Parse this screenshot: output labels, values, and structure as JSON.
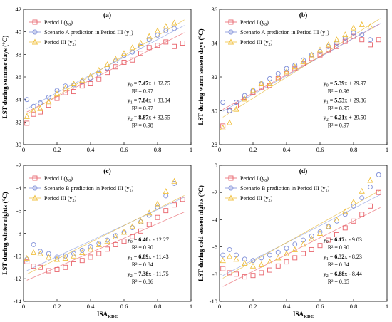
{
  "figure": {
    "x_axis_label_main": "ISA",
    "x_axis_label_sub": "KDE"
  },
  "chart_data": [
    {
      "type": "scatter",
      "panel_label": "(a)",
      "ylabel": "LST during summer days (°C)",
      "xlabel": "ISA_KDE",
      "xlim": [
        0,
        1
      ],
      "ylim": [
        30,
        42
      ],
      "xticks": [
        "0",
        "0.2",
        "0.4",
        "0.6",
        "0.8",
        "1"
      ],
      "yticks": [
        "30",
        "32",
        "34",
        "36",
        "38",
        "40",
        "42"
      ],
      "legend_position": "top-left",
      "series": [
        {
          "name": "Period I (y0)",
          "label_main": "Period I (y",
          "label_sub": "0",
          "label_end": ")",
          "marker": "square",
          "color": "#e8636b",
          "x": [
            0.02,
            0.06,
            0.1,
            0.15,
            0.2,
            0.25,
            0.3,
            0.35,
            0.4,
            0.45,
            0.5,
            0.55,
            0.6,
            0.65,
            0.7,
            0.75,
            0.8,
            0.85,
            0.9,
            0.95
          ],
          "y": [
            31.9,
            32.7,
            32.9,
            33.5,
            34.1,
            34.6,
            34.7,
            35.2,
            35.4,
            35.8,
            36.4,
            36.9,
            37.3,
            37.5,
            38.1,
            38.6,
            38.8,
            39.1,
            38.7,
            39.0
          ]
        },
        {
          "name": "Scenario A prediction in Period III (y1)",
          "label_main": "Scenario A prediction in Period III (y",
          "label_sub": "1",
          "label_end": ")",
          "marker": "circle",
          "color": "#7f8fd8",
          "x": [
            0.02,
            0.06,
            0.1,
            0.15,
            0.2,
            0.25,
            0.3,
            0.35,
            0.4,
            0.45,
            0.5,
            0.55,
            0.6,
            0.65,
            0.7,
            0.75,
            0.8,
            0.85,
            0.9
          ],
          "y": [
            34.0,
            33.4,
            33.7,
            34.2,
            34.8,
            35.2,
            35.3,
            35.6,
            35.9,
            36.3,
            36.8,
            37.4,
            37.9,
            38.2,
            38.7,
            39.3,
            39.7,
            40.1,
            40.3
          ]
        },
        {
          "name": "Period III (y2)",
          "label_main": "Period III (y",
          "label_sub": "2",
          "label_end": ")",
          "marker": "triangle",
          "color": "#f0c040",
          "x": [
            0.02,
            0.06,
            0.1,
            0.15,
            0.2,
            0.25,
            0.3,
            0.35,
            0.4,
            0.45,
            0.5,
            0.55,
            0.6,
            0.65,
            0.7,
            0.75,
            0.8,
            0.85,
            0.9
          ],
          "y": [
            32.5,
            33.0,
            33.2,
            33.8,
            34.5,
            35.0,
            35.4,
            35.7,
            36.1,
            36.6,
            37.1,
            37.6,
            38.1,
            38.6,
            39.0,
            39.6,
            40.1,
            40.5,
            40.8
          ]
        }
      ],
      "fits": [
        {
          "slope": 7.47,
          "intercept": 32.75,
          "r2": "0.97",
          "lhs": "y",
          "lhs_sub": "0",
          "text_slope": "7.47",
          "text_rest": "x + 32.75",
          "r2_text": "R² = 0.97",
          "color": "#e8636b"
        },
        {
          "slope": 7.84,
          "intercept": 33.04,
          "r2": "0.97",
          "lhs": "y",
          "lhs_sub": "1",
          "text_slope": "7.84",
          "text_rest": "x + 33.04",
          "r2_text": "R² = 0.97",
          "color": "#8d9fe0"
        },
        {
          "slope": 8.87,
          "intercept": 32.55,
          "r2": "0.98",
          "lhs": "y",
          "lhs_sub": "2",
          "text_slope": "8.87",
          "text_rest": "x + 32.55",
          "r2_text": "R² = 0.98",
          "color": "#e6b93a"
        }
      ]
    },
    {
      "type": "scatter",
      "panel_label": "(b)",
      "ylabel": "LST during warm season days (°C)",
      "xlabel": "ISA_KDE",
      "xlim": [
        0,
        1
      ],
      "ylim": [
        28,
        36
      ],
      "xticks": [
        "0",
        "0.2",
        "0.4",
        "0.6",
        "0.8",
        "1"
      ],
      "yticks": [
        "28",
        "30",
        "32",
        "34",
        "36"
      ],
      "legend_position": "top-left",
      "series": [
        {
          "name": "Period I (y0)",
          "label_main": "Period I (y",
          "label_sub": "0",
          "label_end": ")",
          "marker": "square",
          "color": "#e8636b",
          "x": [
            0.02,
            0.06,
            0.1,
            0.15,
            0.2,
            0.25,
            0.3,
            0.35,
            0.4,
            0.45,
            0.5,
            0.55,
            0.6,
            0.65,
            0.7,
            0.75,
            0.8,
            0.85,
            0.9,
            0.95
          ],
          "y": [
            29.1,
            30.0,
            30.3,
            30.8,
            31.1,
            31.4,
            31.5,
            31.9,
            32.2,
            32.5,
            32.8,
            33.1,
            33.3,
            33.6,
            33.8,
            34.1,
            34.4,
            34.2,
            33.9,
            34.2
          ]
        },
        {
          "name": "Scenario A prediction in Period III (y1)",
          "label_main": "Scenario A prediction in Period III (y",
          "label_sub": "1",
          "label_end": ")",
          "marker": "circle",
          "color": "#7f8fd8",
          "x": [
            0.02,
            0.06,
            0.1,
            0.15,
            0.2,
            0.25,
            0.3,
            0.35,
            0.4,
            0.45,
            0.5,
            0.55,
            0.6,
            0.65,
            0.7,
            0.75,
            0.8,
            0.85,
            0.9
          ],
          "y": [
            30.5,
            30.0,
            30.5,
            30.9,
            31.2,
            31.6,
            31.9,
            32.2,
            32.5,
            32.7,
            33.0,
            33.3,
            33.5,
            33.8,
            34.0,
            34.3,
            34.6,
            34.5,
            34.2
          ]
        },
        {
          "name": "Period III (y2)",
          "label_main": "Period III (y",
          "label_sub": "2",
          "label_end": ")",
          "marker": "triangle",
          "color": "#f0c040",
          "x": [
            0.02,
            0.06,
            0.1,
            0.15,
            0.2,
            0.25,
            0.3,
            0.35,
            0.4,
            0.45,
            0.5,
            0.55,
            0.6,
            0.65,
            0.7,
            0.75,
            0.8,
            0.85,
            0.9
          ],
          "y": [
            29.0,
            29.3,
            30.1,
            30.7,
            31.2,
            31.6,
            31.6,
            31.9,
            32.3,
            32.6,
            32.9,
            33.3,
            33.6,
            33.9,
            34.2,
            34.5,
            34.9,
            35.1,
            35.0
          ]
        }
      ],
      "fits": [
        {
          "slope": 5.39,
          "intercept": 29.97,
          "r2": "0.96",
          "lhs": "y",
          "lhs_sub": "0",
          "text_slope": "5.39",
          "text_rest": "x + 29.97",
          "r2_text": "R² = 0.96",
          "color": "#e8636b"
        },
        {
          "slope": 5.53,
          "intercept": 29.86,
          "r2": "0.95",
          "lhs": "y",
          "lhs_sub": "1",
          "text_slope": "5.53",
          "text_rest": "x + 29.86",
          "r2_text": "R² = 0.95",
          "color": "#8d9fe0"
        },
        {
          "slope": 6.21,
          "intercept": 29.5,
          "r2": "0.97",
          "lhs": "y",
          "lhs_sub": "2",
          "text_slope": "6.21",
          "text_rest": "x + 29.50",
          "r2_text": "R² = 0.97",
          "color": "#e6b93a"
        }
      ]
    },
    {
      "type": "scatter",
      "panel_label": "(c)",
      "ylabel": "LST during winter nights (°C)",
      "xlabel": "ISA_KDE",
      "xlim": [
        0,
        1
      ],
      "ylim": [
        -14,
        -2
      ],
      "xticks": [
        "0",
        "0.2",
        "0.4",
        "0.6",
        "0.8",
        "1"
      ],
      "yticks": [
        "-14",
        "-12",
        "-10",
        "-8",
        "-6",
        "-4",
        "-2"
      ],
      "legend_position": "top-left",
      "series": [
        {
          "name": "Period I (y0)",
          "label_main": "Period I (y",
          "label_sub": "0",
          "label_end": ")",
          "marker": "square",
          "color": "#e8636b",
          "x": [
            0.02,
            0.06,
            0.1,
            0.15,
            0.2,
            0.25,
            0.3,
            0.35,
            0.4,
            0.45,
            0.5,
            0.55,
            0.6,
            0.65,
            0.7,
            0.75,
            0.8,
            0.85,
            0.9,
            0.95
          ],
          "y": [
            -10.5,
            -10.9,
            -11.0,
            -11.3,
            -11.2,
            -11.0,
            -10.7,
            -10.4,
            -10.1,
            -9.8,
            -9.4,
            -9.0,
            -8.7,
            -8.3,
            -7.8,
            -7.2,
            -6.6,
            -6.0,
            -5.5,
            -5.0
          ]
        },
        {
          "name": "Scenario B prediction in Period III (y1)",
          "label_main": "Scenario B prediction in Period III (y",
          "label_sub": "1",
          "label_end": ")",
          "marker": "circle",
          "color": "#7f8fd8",
          "x": [
            0.02,
            0.06,
            0.1,
            0.15,
            0.2,
            0.25,
            0.3,
            0.35,
            0.4,
            0.45,
            0.5,
            0.55,
            0.6,
            0.65,
            0.7,
            0.75,
            0.8,
            0.85,
            0.9
          ],
          "y": [
            -10.3,
            -9.0,
            -9.6,
            -9.8,
            -10.1,
            -10.0,
            -9.8,
            -9.5,
            -9.2,
            -8.9,
            -8.6,
            -8.2,
            -7.9,
            -7.5,
            -7.0,
            -6.4,
            -5.7,
            -4.7,
            -3.6
          ]
        },
        {
          "name": "Period III (y2)",
          "label_main": "Period III (y",
          "label_sub": "2",
          "label_end": ")",
          "marker": "triangle",
          "color": "#f0c040",
          "x": [
            0.02,
            0.06,
            0.1,
            0.15,
            0.2,
            0.25,
            0.3,
            0.35,
            0.4,
            0.45,
            0.5,
            0.55,
            0.6,
            0.65,
            0.7,
            0.75,
            0.8,
            0.85,
            0.9
          ],
          "y": [
            -10.2,
            -9.7,
            -9.8,
            -10.1,
            -10.3,
            -10.2,
            -10.0,
            -9.7,
            -9.4,
            -9.0,
            -8.7,
            -8.3,
            -7.9,
            -7.4,
            -6.9,
            -6.2,
            -5.4,
            -4.3,
            -3.4
          ]
        }
      ],
      "fits": [
        {
          "slope": 6.4,
          "intercept": -12.27,
          "r2": "0.90",
          "lhs": "y",
          "lhs_sub": "0",
          "text_slope": "6.40",
          "text_rest": "x - 12.27",
          "r2_text": "R² = 0.90",
          "color": "#e8636b"
        },
        {
          "slope": 6.89,
          "intercept": -11.43,
          "r2": "0.84",
          "lhs": "y",
          "lhs_sub": "1",
          "text_slope": "6.89",
          "text_rest": "x - 11.43",
          "r2_text": "R² = 0.84",
          "color": "#8d9fe0"
        },
        {
          "slope": 7.38,
          "intercept": -11.75,
          "r2": "0.86",
          "lhs": "y",
          "lhs_sub": "2",
          "text_slope": "7.38",
          "text_rest": "x - 11.75",
          "r2_text": "R² = 0.86",
          "color": "#e6b93a"
        }
      ]
    },
    {
      "type": "scatter",
      "panel_label": "(d)",
      "ylabel": "LST during cold season nights (°C)",
      "xlabel": "ISA_KDE",
      "xlim": [
        0,
        1
      ],
      "ylim": [
        -10,
        0
      ],
      "xticks": [
        "0",
        "0.2",
        "0.4",
        "0.6",
        "0.8",
        "1"
      ],
      "yticks": [
        "-10",
        "-8",
        "-6",
        "-4",
        "-2",
        "0"
      ],
      "legend_position": "top-left",
      "series": [
        {
          "name": "Period I (y0)",
          "label_main": "Period I (y",
          "label_sub": "0",
          "label_end": ")",
          "marker": "square",
          "color": "#e8636b",
          "x": [
            0.02,
            0.06,
            0.1,
            0.15,
            0.2,
            0.25,
            0.3,
            0.35,
            0.4,
            0.45,
            0.5,
            0.55,
            0.6,
            0.65,
            0.7,
            0.75,
            0.8,
            0.85,
            0.9,
            0.95
          ],
          "y": [
            -7.6,
            -7.9,
            -8.0,
            -8.2,
            -8.1,
            -7.9,
            -7.7,
            -7.4,
            -7.1,
            -6.8,
            -6.5,
            -6.2,
            -5.9,
            -5.5,
            -5.1,
            -4.6,
            -4.1,
            -3.6,
            -3.0,
            -2.0
          ]
        },
        {
          "name": "Scenario B prediction in Period III (y1)",
          "label_main": "Scenario B prediction in Period III (y",
          "label_sub": "1",
          "label_end": ")",
          "marker": "circle",
          "color": "#7f8fd8",
          "x": [
            0.02,
            0.06,
            0.1,
            0.15,
            0.2,
            0.25,
            0.3,
            0.35,
            0.4,
            0.45,
            0.5,
            0.55,
            0.6,
            0.65,
            0.7,
            0.75,
            0.8,
            0.85,
            0.9,
            0.95
          ],
          "y": [
            -6.6,
            -6.2,
            -6.6,
            -6.9,
            -7.0,
            -6.8,
            -6.6,
            -6.4,
            -6.1,
            -5.8,
            -5.5,
            -5.2,
            -4.9,
            -4.5,
            -4.1,
            -3.6,
            -3.0,
            -2.4,
            -1.6,
            -0.7
          ]
        },
        {
          "name": "Period III (y2)",
          "label_main": "Period III (y",
          "label_sub": "2",
          "label_end": ")",
          "marker": "triangle",
          "color": "#f0c040",
          "x": [
            0.02,
            0.06,
            0.1,
            0.15,
            0.2,
            0.25,
            0.3,
            0.35,
            0.4,
            0.45,
            0.5,
            0.55,
            0.6,
            0.65,
            0.7,
            0.75,
            0.8,
            0.85,
            0.9
          ],
          "y": [
            -7.0,
            -6.7,
            -6.9,
            -7.2,
            -7.4,
            -7.3,
            -7.1,
            -6.8,
            -6.5,
            -6.2,
            -5.8,
            -5.4,
            -5.0,
            -4.5,
            -4.0,
            -3.4,
            -2.7,
            -1.9,
            -1.1
          ]
        }
      ],
      "fits": [
        {
          "slope": 6.17,
          "intercept": -9.03,
          "r2": "0.90",
          "lhs": "y",
          "lhs_sub": "0",
          "text_slope": "6.17",
          "text_rest": "x - 9.03",
          "r2_text": "R² = 0.90",
          "color": "#e8636b"
        },
        {
          "slope": 6.32,
          "intercept": -8.23,
          "r2": "0.84",
          "lhs": "y",
          "lhs_sub": "1",
          "text_slope": "6.32",
          "text_rest": "x - 8.23",
          "r2_text": "R² = 0.84",
          "color": "#8d9fe0"
        },
        {
          "slope": 6.88,
          "intercept": -8.44,
          "r2": "0.85",
          "lhs": "y",
          "lhs_sub": "2",
          "text_slope": "6.88",
          "text_rest": "x - 8.44",
          "r2_text": "R² = 0.85",
          "color": "#e6b93a"
        }
      ]
    }
  ]
}
